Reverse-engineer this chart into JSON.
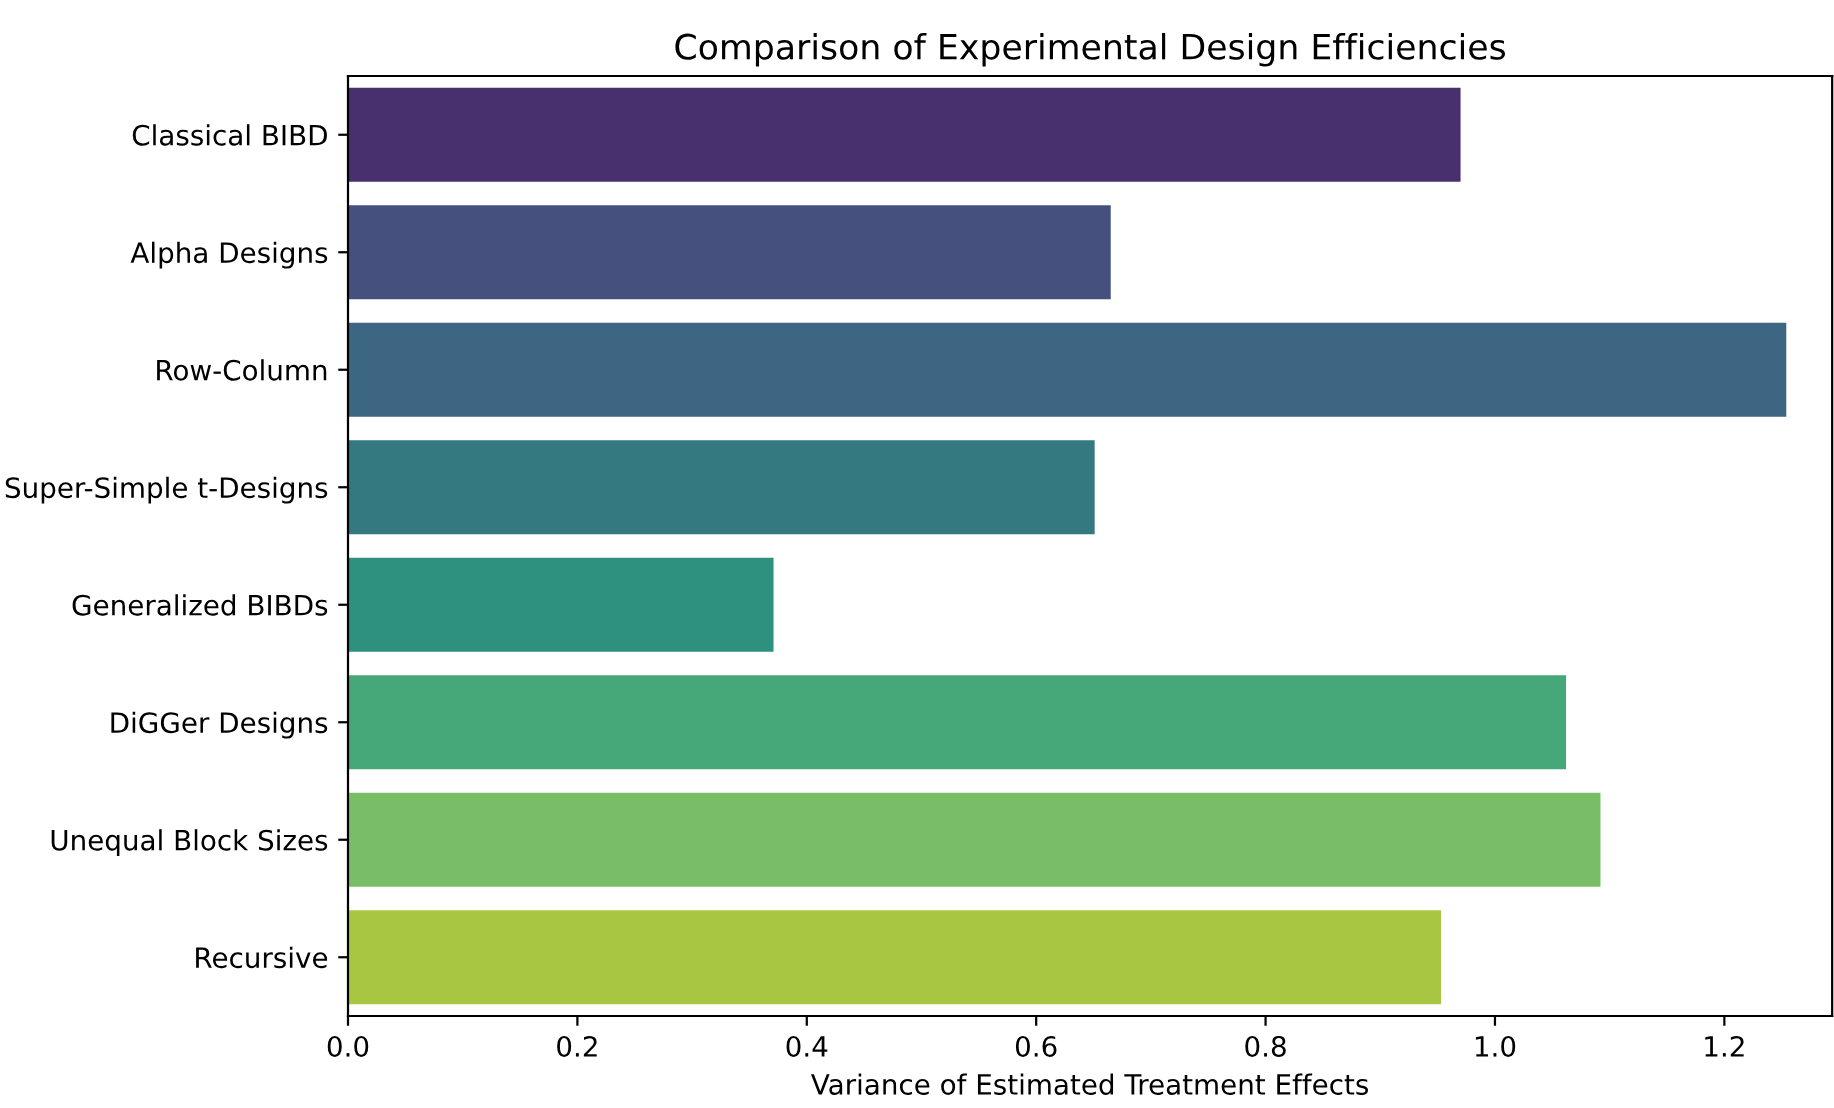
{
  "chart_data": {
    "type": "bar",
    "orientation": "horizontal",
    "title": "Comparison of Experimental Design Efficiencies",
    "xlabel": "Variance of Estimated Treatment Effects",
    "categories": [
      "Classical BIBD",
      "Alpha Designs",
      "Row-Column",
      "Super-Simple t-Designs",
      "Generalized BIBDs",
      "DiGGer Designs",
      "Unequal Block Sizes",
      "Recursive"
    ],
    "values": [
      0.97,
      0.665,
      1.254,
      0.651,
      0.371,
      1.062,
      1.092,
      0.953
    ],
    "colors": [
      "#482f6e",
      "#46507f",
      "#3d6683",
      "#347980",
      "#2e917f",
      "#46a878",
      "#79be67",
      "#a9c642"
    ],
    "xlim": [
      0,
      1.294
    ],
    "xticks": [
      {
        "value": 0,
        "label": "0.0"
      },
      {
        "value": 0.2,
        "label": "0.2"
      },
      {
        "value": 0.4,
        "label": "0.4"
      },
      {
        "value": 0.6,
        "label": "0.6"
      },
      {
        "value": 0.8,
        "label": "0.8"
      },
      {
        "value": 1.0,
        "label": "1.0"
      },
      {
        "value": 1.2,
        "label": "1.2"
      }
    ],
    "grid": false,
    "legend": false
  }
}
